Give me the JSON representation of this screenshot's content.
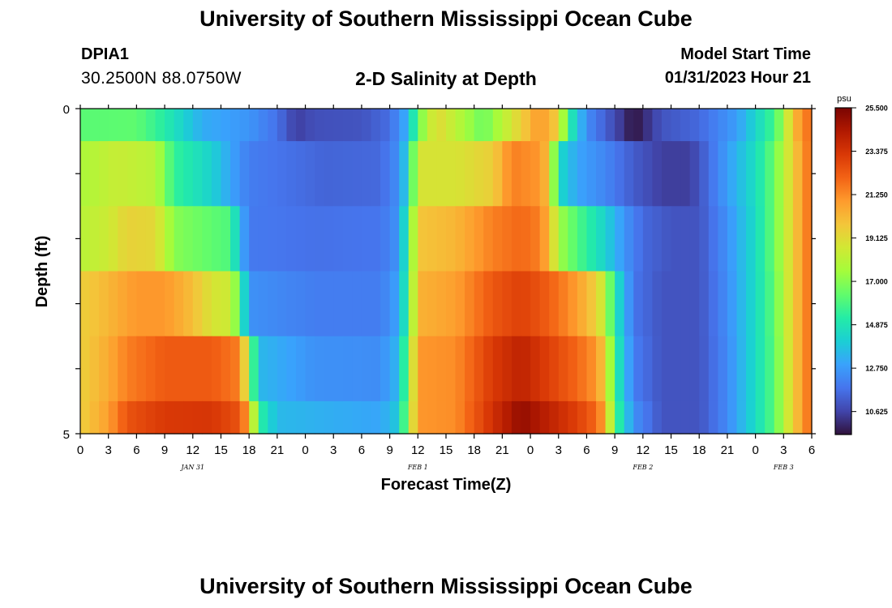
{
  "header": {
    "title": "University of Southern Mississippi Ocean Cube",
    "station": "DPIA1",
    "coordinates": "30.2500N  88.0750W",
    "subtitle": "2-D Salinity at Depth",
    "model_start_label": "Model Start Time",
    "model_start_value": "01/31/2023 Hour 21"
  },
  "footer": {
    "title": "University of Southern Mississippi Ocean Cube"
  },
  "chart_data": {
    "type": "heatmap",
    "title": "2-D Salinity at Depth",
    "xlabel": "Forecast Time(Z)",
    "ylabel": "Depth (ft)",
    "x_start_hour_of_jan31": 0,
    "x_end_hour_of_jan31": 78,
    "x_step_hours": 1,
    "x_tick_labels": [
      "0",
      "3",
      "6",
      "9",
      "12",
      "15",
      "18",
      "21",
      "0",
      "3",
      "6",
      "9",
      "12",
      "15",
      "18",
      "21",
      "0",
      "3",
      "6",
      "9",
      "12",
      "15",
      "18",
      "21",
      "0",
      "3",
      "6"
    ],
    "day_labels": [
      {
        "label": "JAN 31",
        "hour": 12
      },
      {
        "label": "FEB 1",
        "hour": 36
      },
      {
        "label": "FEB 2",
        "hour": 60
      },
      {
        "label": "FEB 3",
        "hour": 75
      }
    ],
    "y_tick_labels": [
      "0",
      "5"
    ],
    "ylim": [
      0,
      5
    ],
    "depth_levels_ft": [
      0,
      1,
      2,
      3,
      4,
      5
    ],
    "colorbar": {
      "unit": "psu",
      "min": 9.5,
      "max": 25.5,
      "tick_labels": [
        "25.500",
        "23.375",
        "21.250",
        "19.125",
        "17.000",
        "14.875",
        "12.750",
        "10.625"
      ],
      "colors": [
        "#30123b",
        "#4145ab",
        "#4675ed",
        "#39a2fc",
        "#1bcfd4",
        "#24eca6",
        "#61fc6c",
        "#a4fc3b",
        "#d1e834",
        "#f3c63a",
        "#fe9b2d",
        "#f36315",
        "#d93806",
        "#b11901",
        "#7a0402"
      ]
    },
    "salinity_psu": [
      {
        "depth_ft": 0,
        "keyframes": [
          [
            0,
            16.2
          ],
          [
            6,
            16.3
          ],
          [
            9,
            15.2
          ],
          [
            13,
            13.2
          ],
          [
            18,
            12.6
          ],
          [
            21,
            11.7
          ],
          [
            23,
            10.5
          ],
          [
            25,
            10.9
          ],
          [
            30,
            11.0
          ],
          [
            33,
            11.6
          ],
          [
            35,
            13.4
          ],
          [
            36,
            16.5
          ],
          [
            38,
            19.2
          ],
          [
            43,
            16.5
          ],
          [
            47,
            19.5
          ],
          [
            49,
            21.0
          ],
          [
            51,
            19.5
          ],
          [
            52,
            15.5
          ],
          [
            54,
            12.4
          ],
          [
            56,
            11.3
          ],
          [
            58,
            10.2
          ],
          [
            59,
            9.5
          ],
          [
            60,
            10.0
          ],
          [
            62,
            11.0
          ],
          [
            66,
            11.5
          ],
          [
            70,
            12.8
          ],
          [
            74,
            15.8
          ],
          [
            75,
            17.5
          ],
          [
            76,
            20.0
          ],
          [
            78,
            22.2
          ]
        ]
      },
      {
        "depth_ft": 1,
        "keyframes": [
          [
            0,
            17.7
          ],
          [
            4,
            18.4
          ],
          [
            8,
            18.0
          ],
          [
            10,
            15.5
          ],
          [
            14,
            14.2
          ],
          [
            16,
            13.0
          ],
          [
            18,
            12.0
          ],
          [
            26,
            11.4
          ],
          [
            32,
            11.5
          ],
          [
            34,
            12.5
          ],
          [
            35,
            14.5
          ],
          [
            36,
            18.8
          ],
          [
            40,
            18.8
          ],
          [
            44,
            19.5
          ],
          [
            46,
            21.5
          ],
          [
            49,
            21.0
          ],
          [
            50,
            19.8
          ],
          [
            51,
            14.5
          ],
          [
            53,
            13.0
          ],
          [
            56,
            12.2
          ],
          [
            59,
            11.2
          ],
          [
            62,
            10.5
          ],
          [
            65,
            10.5
          ],
          [
            66,
            11.0
          ],
          [
            69,
            12.8
          ],
          [
            72,
            14.6
          ],
          [
            74,
            16.5
          ],
          [
            76,
            19.5
          ],
          [
            78,
            22.2
          ]
        ]
      },
      {
        "depth_ft": 2,
        "keyframes": [
          [
            0,
            18.0
          ],
          [
            3,
            18.5
          ],
          [
            5,
            19.4
          ],
          [
            8,
            19.2
          ],
          [
            10,
            17.0
          ],
          [
            14,
            16.3
          ],
          [
            16,
            16.0
          ],
          [
            17,
            13.5
          ],
          [
            18,
            11.9
          ],
          [
            25,
            11.7
          ],
          [
            32,
            11.8
          ],
          [
            34,
            12.6
          ],
          [
            35,
            15.8
          ],
          [
            36,
            19.8
          ],
          [
            40,
            20.2
          ],
          [
            44,
            21.5
          ],
          [
            47,
            22.0
          ],
          [
            49,
            21.5
          ],
          [
            50,
            20.2
          ],
          [
            51,
            17.5
          ],
          [
            53,
            16.0
          ],
          [
            56,
            14.2
          ],
          [
            58,
            12.6
          ],
          [
            60,
            11.5
          ],
          [
            63,
            11.0
          ],
          [
            66,
            11.0
          ],
          [
            69,
            12.5
          ],
          [
            72,
            14.5
          ],
          [
            74,
            16.5
          ],
          [
            76,
            19.5
          ],
          [
            78,
            22.2
          ]
        ]
      },
      {
        "depth_ft": 3,
        "keyframes": [
          [
            0,
            19.5
          ],
          [
            3,
            20.2
          ],
          [
            6,
            21.0
          ],
          [
            9,
            21.0
          ],
          [
            12,
            20.0
          ],
          [
            14,
            18.8
          ],
          [
            16,
            18.5
          ],
          [
            17,
            16.0
          ],
          [
            18,
            12.5
          ],
          [
            25,
            12.0
          ],
          [
            32,
            12.0
          ],
          [
            34,
            13.0
          ],
          [
            35,
            16.0
          ],
          [
            36,
            20.3
          ],
          [
            40,
            20.8
          ],
          [
            44,
            22.4
          ],
          [
            47,
            23.0
          ],
          [
            49,
            22.5
          ],
          [
            51,
            21.8
          ],
          [
            53,
            20.8
          ],
          [
            55,
            19.5
          ],
          [
            56,
            18.0
          ],
          [
            57,
            15.0
          ],
          [
            59,
            11.8
          ],
          [
            62,
            11.0
          ],
          [
            66,
            11.0
          ],
          [
            69,
            12.4
          ],
          [
            72,
            14.5
          ],
          [
            74,
            16.3
          ],
          [
            76,
            19.5
          ],
          [
            78,
            22.2
          ]
        ]
      },
      {
        "depth_ft": 4,
        "keyframes": [
          [
            0,
            19.5
          ],
          [
            3,
            20.5
          ],
          [
            5,
            21.5
          ],
          [
            9,
            22.3
          ],
          [
            14,
            22.3
          ],
          [
            17,
            21.5
          ],
          [
            18,
            17.5
          ],
          [
            19,
            13.5
          ],
          [
            25,
            12.5
          ],
          [
            32,
            12.4
          ],
          [
            34,
            13.5
          ],
          [
            35,
            17.0
          ],
          [
            36,
            21.0
          ],
          [
            40,
            21.2
          ],
          [
            44,
            23.2
          ],
          [
            47,
            24.0
          ],
          [
            50,
            23.0
          ],
          [
            53,
            22.0
          ],
          [
            55,
            21.0
          ],
          [
            56,
            19.5
          ],
          [
            57,
            15.5
          ],
          [
            59,
            12.0
          ],
          [
            62,
            11.0
          ],
          [
            66,
            11.0
          ],
          [
            69,
            12.3
          ],
          [
            72,
            14.5
          ],
          [
            74,
            16.2
          ],
          [
            76,
            19.5
          ],
          [
            78,
            22.2
          ]
        ]
      },
      {
        "depth_ft": 5,
        "keyframes": [
          [
            0,
            19.5
          ],
          [
            3,
            20.8
          ],
          [
            5,
            22.5
          ],
          [
            9,
            23.2
          ],
          [
            14,
            23.3
          ],
          [
            17,
            22.5
          ],
          [
            18,
            20.5
          ],
          [
            19,
            15.5
          ],
          [
            21,
            13.5
          ],
          [
            25,
            13.3
          ],
          [
            32,
            13.0
          ],
          [
            34,
            14.0
          ],
          [
            35,
            17.5
          ],
          [
            36,
            21.0
          ],
          [
            40,
            21.2
          ],
          [
            44,
            23.5
          ],
          [
            47,
            25.0
          ],
          [
            50,
            24.0
          ],
          [
            53,
            23.0
          ],
          [
            55,
            22.0
          ],
          [
            56,
            20.5
          ],
          [
            57,
            16.0
          ],
          [
            59,
            12.5
          ],
          [
            62,
            11.0
          ],
          [
            66,
            11.0
          ],
          [
            69,
            12.3
          ],
          [
            72,
            14.5
          ],
          [
            74,
            16.2
          ],
          [
            76,
            19.5
          ],
          [
            78,
            22.2
          ]
        ]
      }
    ]
  }
}
